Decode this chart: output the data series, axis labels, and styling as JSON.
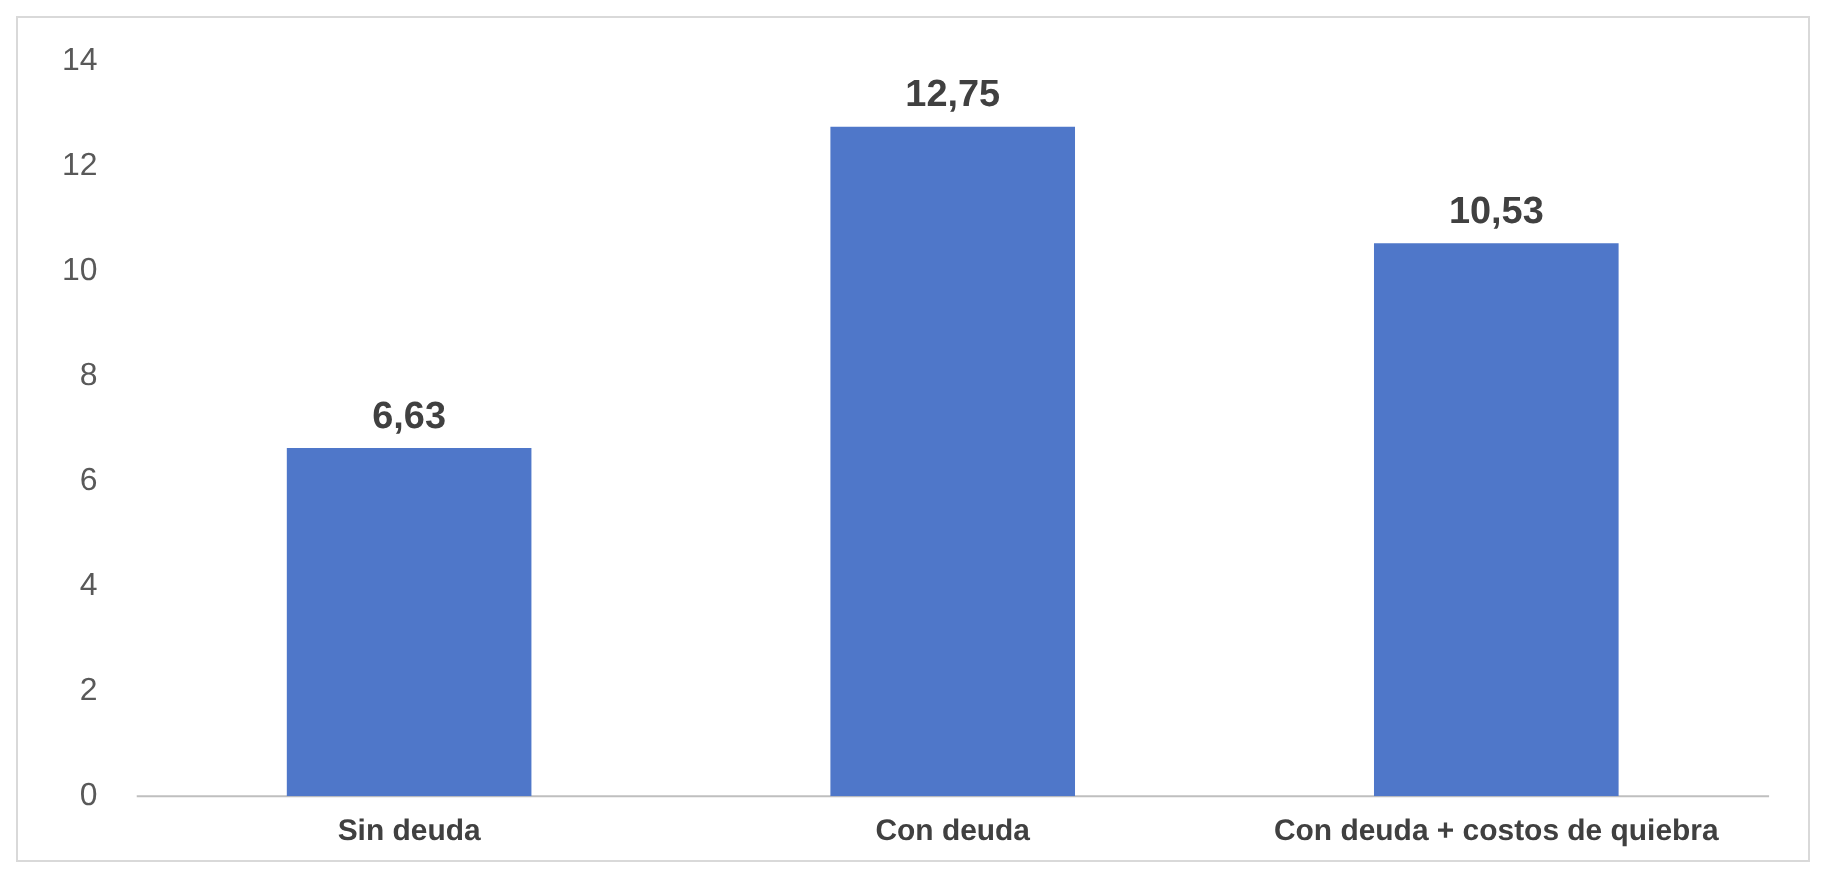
{
  "chart_data": {
    "type": "bar",
    "categories": [
      "Sin deuda",
      "Con deuda",
      "Con deuda + costos de quiebra"
    ],
    "values": [
      6.63,
      12.75,
      10.53
    ],
    "color": "#4f77c9",
    "value_labels": [
      "6,63",
      "12,75",
      "10,53"
    ],
    "ylim": [
      0,
      14
    ],
    "yticks": [
      0,
      2,
      4,
      6,
      8,
      10,
      12,
      14
    ],
    "grid": false,
    "legend": false
  }
}
